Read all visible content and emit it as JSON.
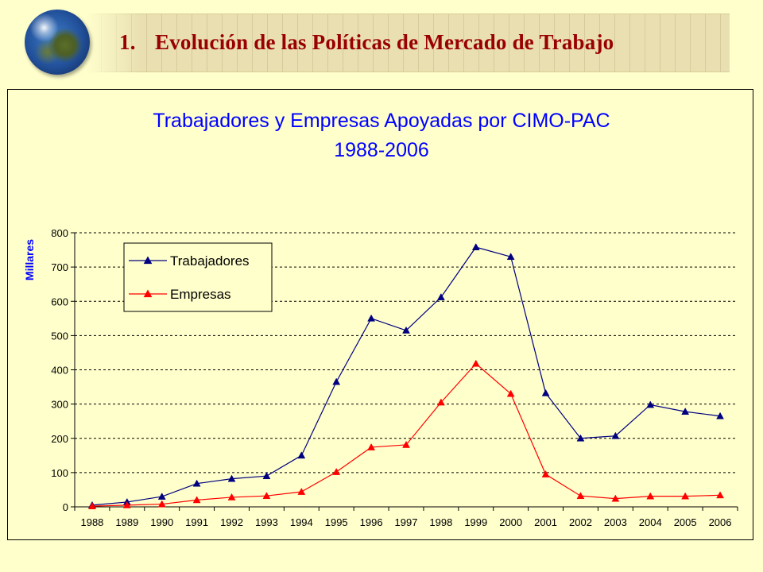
{
  "slide": {
    "title_number": "1.",
    "title_text": "Evolución de las Políticas de Mercado de Trabajo"
  },
  "colors": {
    "title": "#990000",
    "chart_title": "#0000ff",
    "axis_label": "#0000ff",
    "trabajadores": "#000080",
    "empresas": "#ff0000",
    "background": "#ffffcc"
  },
  "chart_data": {
    "type": "line",
    "title": "Trabajadores y Empresas Apoyadas por CIMO-PAC",
    "subtitle": "1988-2006",
    "xlabel": "",
    "ylabel": "Millares",
    "ylim": [
      0,
      800
    ],
    "yticks": [
      0,
      100,
      200,
      300,
      400,
      500,
      600,
      700,
      800
    ],
    "grid": true,
    "legend": "top-left",
    "categories": [
      "1988",
      "1989",
      "1990",
      "1991",
      "1992",
      "1993",
      "1994",
      "1995",
      "1996",
      "1997",
      "1998",
      "1999",
      "2000",
      "2001",
      "2002",
      "2003",
      "2004",
      "2005",
      "2006"
    ],
    "series": [
      {
        "name": "Trabajadores",
        "color": "#000080",
        "marker": "triangle",
        "values": [
          5,
          14,
          30,
          68,
          82,
          90,
          150,
          365,
          550,
          515,
          612,
          758,
          730,
          332,
          200,
          207,
          298,
          278,
          265
        ]
      },
      {
        "name": "Empresas",
        "color": "#ff0000",
        "marker": "triangle",
        "values": [
          2,
          5,
          8,
          20,
          28,
          32,
          44,
          102,
          174,
          181,
          305,
          418,
          330,
          95,
          32,
          24,
          31,
          31,
          34
        ]
      }
    ]
  }
}
